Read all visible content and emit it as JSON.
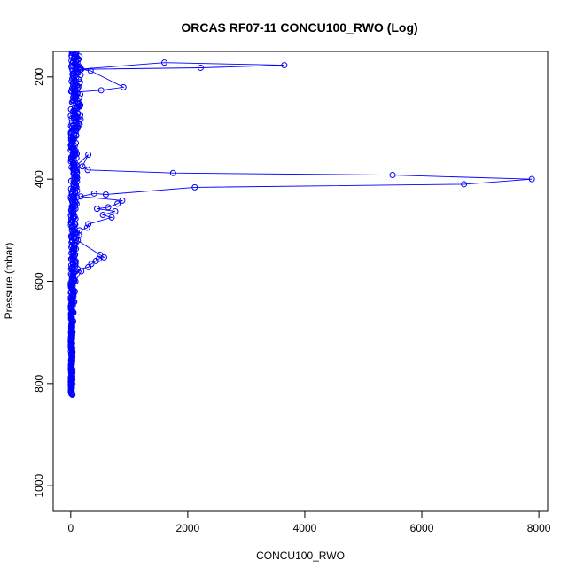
{
  "chart_data": {
    "type": "scatter",
    "title": "ORCAS RF07-11 CONCU100_RWO (Log)",
    "xlabel": "CONCU100_RWO",
    "ylabel": "Pressure (mbar)",
    "xlim": [
      -300,
      8150
    ],
    "ylim": [
      1050,
      150
    ],
    "y_reversed": true,
    "xticks": [
      0,
      2000,
      4000,
      6000,
      8000
    ],
    "yticks": [
      200,
      400,
      600,
      800,
      1000
    ],
    "series_color": "#0000ff",
    "lines_connected": true,
    "series": [
      {
        "marker": "open-circle",
        "x": [
          30,
          20,
          40,
          60,
          90,
          130,
          1600,
          3650,
          2220,
          180,
          340,
          900,
          520,
          60,
          40,
          70,
          50,
          60,
          40,
          30,
          50,
          40,
          60,
          50,
          40,
          300,
          200,
          290,
          1750,
          5500,
          7880,
          6720,
          2120,
          600,
          400,
          170,
          880,
          800,
          640,
          450,
          760,
          550,
          700,
          300,
          280,
          150,
          140,
          120,
          500,
          570,
          480,
          430,
          350,
          300,
          120,
          180,
          80,
          70,
          60,
          40,
          30,
          30,
          20,
          20,
          20,
          10,
          10
        ],
        "y": [
          150,
          160,
          170,
          175,
          180,
          185,
          172,
          177,
          182,
          185,
          188,
          220,
          226,
          230,
          240,
          260,
          280,
          300,
          320,
          340,
          360,
          370,
          375,
          378,
          380,
          352,
          375,
          382,
          388,
          392,
          400,
          410,
          416,
          430,
          428,
          434,
          442,
          448,
          455,
          458,
          463,
          470,
          475,
          488,
          495,
          500,
          510,
          520,
          548,
          553,
          556,
          560,
          566,
          572,
          576,
          580,
          600,
          620,
          640,
          660,
          680,
          700,
          720,
          740,
          760,
          800,
          820
        ]
      }
    ]
  }
}
